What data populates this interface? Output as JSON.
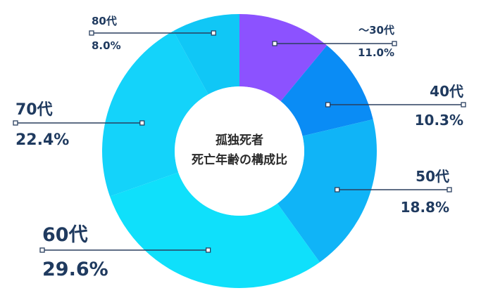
{
  "chart_data": {
    "type": "pie",
    "title": "孤独死者\n死亡年齢の構成比",
    "center_title_lines": [
      "孤独死者",
      "死亡年齢の構成比"
    ],
    "slices": [
      {
        "label": "〜30代",
        "value": 11.0,
        "value_label": "11.0%",
        "color": "#8c52ff"
      },
      {
        "label": "40代",
        "value": 10.3,
        "value_label": "10.3%",
        "color": "#0a8cf5"
      },
      {
        "label": "50代",
        "value": 18.8,
        "value_label": "18.8%",
        "color": "#10b4f7"
      },
      {
        "label": "60代",
        "value": 29.6,
        "value_label": "29.6%",
        "color": "#0fe0fb"
      },
      {
        "label": "70代",
        "value": 22.4,
        "value_label": "22.4%",
        "color": "#14d3fa"
      },
      {
        "label": "80代",
        "value": 8.0,
        "value_label": "8.0%",
        "color": "#10c7f6"
      }
    ],
    "legend": "none"
  }
}
